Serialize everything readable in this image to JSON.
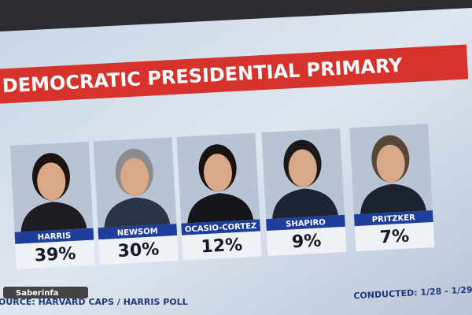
{
  "header": {
    "title": "DEMOCRATIC PRESIDENTIAL PRIMARY"
  },
  "candidates": [
    {
      "name": "HARRIS",
      "value": "39%"
    },
    {
      "name": "NEWSOM",
      "value": "30%"
    },
    {
      "name": "OCASIO-CORTEZ",
      "value": "12%"
    },
    {
      "name": "SHAPIRO",
      "value": "9%"
    },
    {
      "name": "PRITZKER",
      "value": "7%"
    }
  ],
  "footer": {
    "source": "OURCE: HARVARD CAPS / HARRIS POLL",
    "conducted": "CONDUCTED: 1/28 - 1/29",
    "watermark": "Saberinfa"
  }
}
